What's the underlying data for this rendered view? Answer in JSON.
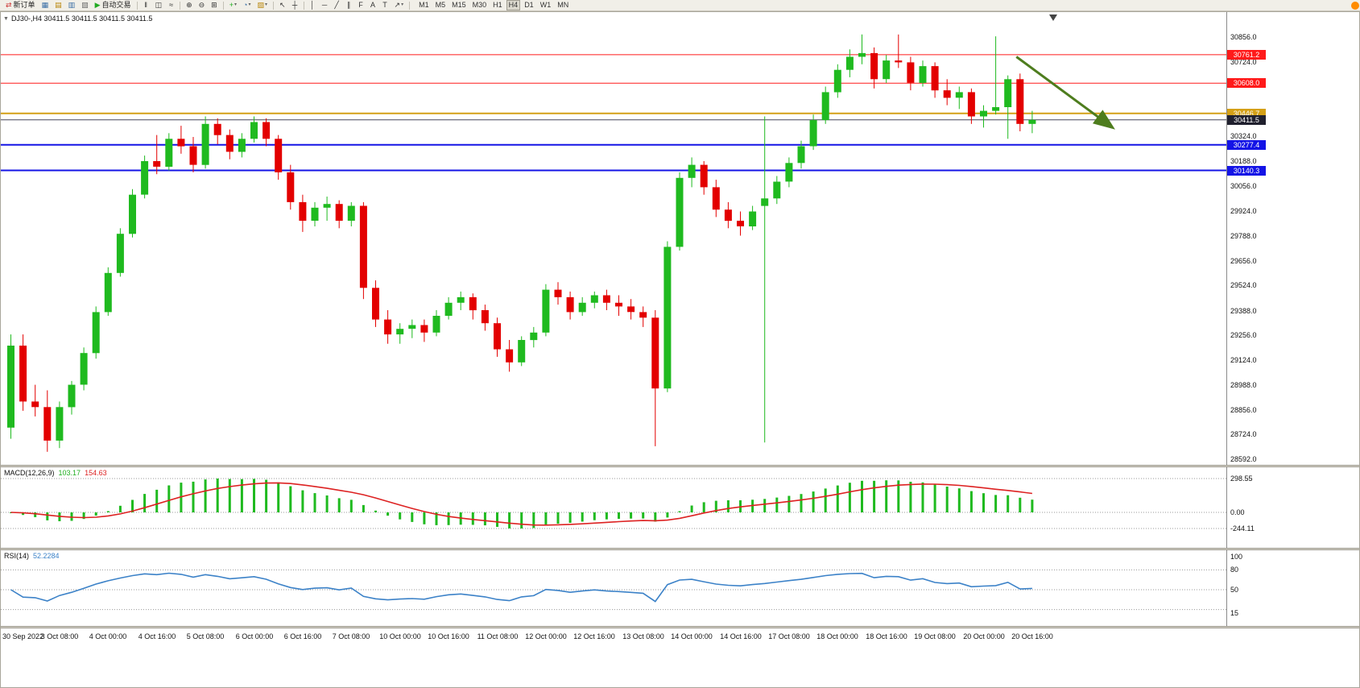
{
  "app": {
    "bull_color": "#1fba1f",
    "bear_color": "#e30000"
  },
  "toolbar": {
    "groups": [
      {
        "items": [
          {
            "name": "new-order-button",
            "glyph": "⇄",
            "glyph_color": "#cc3333",
            "label": "新订单"
          },
          {
            "name": "chart-window-button",
            "glyph": "▦",
            "glyph_color": "#3a6ea5"
          },
          {
            "name": "profiles-button",
            "glyph": "▤",
            "glyph_color": "#b8860b"
          },
          {
            "name": "market-watch-button",
            "glyph": "▥",
            "glyph_color": "#3a6ea5"
          },
          {
            "name": "data-window-button",
            "glyph": "▧",
            "glyph_color": "#6a6a6a"
          },
          {
            "name": "autotrading-button",
            "glyph": "▶",
            "glyph_color": "#22aa22",
            "label": "自动交易"
          }
        ]
      },
      {
        "items": [
          {
            "name": "bar-chart-button",
            "glyph": "‖",
            "glyph_color": "#333333"
          },
          {
            "name": "candlestick-button",
            "glyph": "◫",
            "glyph_color": "#333333"
          },
          {
            "name": "line-chart-button",
            "glyph": "≈",
            "glyph_color": "#333333"
          }
        ]
      },
      {
        "items": [
          {
            "name": "zoom-in-button",
            "glyph": "⊕",
            "glyph_color": "#333333"
          },
          {
            "name": "zoom-out-button",
            "glyph": "⊖",
            "glyph_color": "#333333"
          },
          {
            "name": "tile-windows-button",
            "glyph": "⊞",
            "glyph_color": "#333333"
          }
        ]
      },
      {
        "items": [
          {
            "name": "indicators-button",
            "glyph": "+",
            "glyph_color": "#1fae1f",
            "dropdown": true
          },
          {
            "name": "periods-button",
            "glyph": "◔",
            "glyph_color": "#3a6ea5",
            "dropdown": true
          },
          {
            "name": "templates-button",
            "glyph": "▨",
            "glyph_color": "#b8860b",
            "dropdown": true
          }
        ]
      },
      {
        "items": [
          {
            "name": "cursor-button",
            "glyph": "↖",
            "glyph_color": "#333333"
          },
          {
            "name": "crosshair-button",
            "glyph": "┼",
            "glyph_color": "#333333"
          }
        ]
      },
      {
        "items": [
          {
            "name": "vertical-line-button",
            "glyph": "│",
            "glyph_color": "#333333"
          },
          {
            "name": "horizontal-line-button",
            "glyph": "─",
            "glyph_color": "#333333"
          },
          {
            "name": "trendline-button",
            "glyph": "╱",
            "glyph_color": "#333333"
          },
          {
            "name": "channel-button",
            "glyph": "∥",
            "glyph_color": "#333333"
          },
          {
            "name": "fibonacci-button",
            "glyph": "F",
            "glyph_color": "#333333"
          },
          {
            "name": "text-button",
            "glyph": "A",
            "glyph_color": "#333333"
          },
          {
            "name": "label-button",
            "glyph": "T",
            "glyph_color": "#333333"
          },
          {
            "name": "arrows-button",
            "glyph": "↗",
            "glyph_color": "#333333",
            "dropdown": true
          }
        ]
      }
    ],
    "timeframes": [
      {
        "label": "M1"
      },
      {
        "label": "M5"
      },
      {
        "label": "M15"
      },
      {
        "label": "M30"
      },
      {
        "label": "H1"
      },
      {
        "label": "H4",
        "active": true
      },
      {
        "label": "D1"
      },
      {
        "label": "W1"
      },
      {
        "label": "MN"
      }
    ],
    "help_icon_color": "#ff8c00"
  },
  "chart": {
    "title": "DJ30-,H4  30411.5 30411.5 30411.5 30411.5",
    "scale": {
      "p_max": 30990,
      "p_min": 28560
    },
    "price_axis_ticks": [
      30856,
      30724,
      30324,
      30188,
      30056,
      29924,
      29788,
      29656,
      29524,
      29388,
      29256,
      29124,
      28988,
      28856,
      28724,
      28592
    ],
    "levels": [
      {
        "price": 30761.2,
        "label": "30761.2",
        "color": "#ff1a1a",
        "tag_bg": "#ff1a1a",
        "tag_fg": "#ffffff",
        "lw": 1
      },
      {
        "price": 30608.0,
        "label": "30608.0",
        "color": "#ff1a1a",
        "tag_bg": "#ff1a1a",
        "tag_fg": "#ffffff",
        "lw": 1
      },
      {
        "price": 30446.7,
        "label": "30446.7",
        "color": "#d4a017",
        "tag_bg": "#d4a017",
        "tag_fg": "#ffffff",
        "lw": 2
      },
      {
        "price": 30277.4,
        "label": "30277.4",
        "color": "#1414e6",
        "tag_bg": "#1414e6",
        "tag_fg": "#ffffff",
        "lw": 2
      },
      {
        "price": 30140.3,
        "label": "30140.3",
        "color": "#1414e6",
        "tag_bg": "#1414e6",
        "tag_fg": "#ffffff",
        "lw": 2
      }
    ],
    "current_price": {
      "value": 30411.5,
      "label": "30411.5",
      "line_color": "#46465a",
      "tag_bg": "#20202e",
      "tag_fg": "#ffffff"
    },
    "arrow": {
      "bar1": 83.0,
      "price1": 30750,
      "bar2": 90.8,
      "price2": 30375,
      "color": "#4e7d1e"
    },
    "candles": [
      [
        28760,
        29260,
        28700,
        29200
      ],
      [
        29200,
        29260,
        28850,
        28900
      ],
      [
        28900,
        28990,
        28820,
        28870
      ],
      [
        28870,
        28960,
        28630,
        28690
      ],
      [
        28690,
        28900,
        28650,
        28870
      ],
      [
        28870,
        29010,
        28830,
        28990
      ],
      [
        28990,
        29190,
        28960,
        29160
      ],
      [
        29160,
        29410,
        29130,
        29380
      ],
      [
        29380,
        29620,
        29360,
        29590
      ],
      [
        29590,
        29830,
        29570,
        29800
      ],
      [
        29800,
        30040,
        29780,
        30010
      ],
      [
        30010,
        30220,
        29990,
        30190
      ],
      [
        30190,
        30330,
        30120,
        30160
      ],
      [
        30160,
        30340,
        30140,
        30310
      ],
      [
        30310,
        30380,
        30230,
        30270
      ],
      [
        30270,
        30320,
        30130,
        30170
      ],
      [
        30170,
        30430,
        30150,
        30390
      ],
      [
        30390,
        30420,
        30280,
        30330
      ],
      [
        30330,
        30360,
        30200,
        30240
      ],
      [
        30240,
        30340,
        30210,
        30310
      ],
      [
        30310,
        30430,
        30290,
        30400
      ],
      [
        30400,
        30420,
        30270,
        30310
      ],
      [
        30310,
        30330,
        30090,
        30130
      ],
      [
        30130,
        30170,
        29930,
        29970
      ],
      [
        29970,
        30010,
        29810,
        29870
      ],
      [
        29870,
        29970,
        29840,
        29940
      ],
      [
        29940,
        30000,
        29870,
        29960
      ],
      [
        29960,
        29980,
        29830,
        29870
      ],
      [
        29870,
        29970,
        29840,
        29950
      ],
      [
        29950,
        29970,
        29450,
        29510
      ],
      [
        29510,
        29550,
        29300,
        29340
      ],
      [
        29340,
        29390,
        29210,
        29260
      ],
      [
        29260,
        29320,
        29210,
        29290
      ],
      [
        29290,
        29340,
        29240,
        29310
      ],
      [
        29310,
        29340,
        29220,
        29270
      ],
      [
        29270,
        29390,
        29250,
        29360
      ],
      [
        29360,
        29460,
        29340,
        29430
      ],
      [
        29430,
        29490,
        29390,
        29460
      ],
      [
        29460,
        29480,
        29340,
        29390
      ],
      [
        29390,
        29420,
        29280,
        29320
      ],
      [
        29320,
        29350,
        29140,
        29180
      ],
      [
        29180,
        29230,
        29060,
        29110
      ],
      [
        29110,
        29250,
        29090,
        29230
      ],
      [
        29230,
        29300,
        29190,
        29270
      ],
      [
        29270,
        29530,
        29250,
        29500
      ],
      [
        29500,
        29540,
        29420,
        29460
      ],
      [
        29460,
        29490,
        29340,
        29380
      ],
      [
        29380,
        29460,
        29360,
        29430
      ],
      [
        29430,
        29490,
        29400,
        29470
      ],
      [
        29470,
        29500,
        29390,
        29430
      ],
      [
        29430,
        29470,
        29360,
        29410
      ],
      [
        29410,
        29450,
        29340,
        29380
      ],
      [
        29380,
        29410,
        29300,
        29350
      ],
      [
        29350,
        29390,
        28660,
        28970
      ],
      [
        28970,
        29760,
        28950,
        29730
      ],
      [
        29730,
        30130,
        29710,
        30100
      ],
      [
        30100,
        30210,
        30050,
        30170
      ],
      [
        30170,
        30190,
        30010,
        30050
      ],
      [
        30050,
        30090,
        29890,
        29930
      ],
      [
        29930,
        29970,
        29830,
        29870
      ],
      [
        29870,
        29920,
        29790,
        29840
      ],
      [
        29840,
        29950,
        29820,
        29920
      ],
      [
        29950,
        30430,
        28680,
        29990
      ],
      [
        29990,
        30110,
        29960,
        30080
      ],
      [
        30080,
        30210,
        30050,
        30180
      ],
      [
        30180,
        30300,
        30150,
        30270
      ],
      [
        30270,
        30440,
        30250,
        30410
      ],
      [
        30410,
        30590,
        30390,
        30560
      ],
      [
        30560,
        30710,
        30530,
        30680
      ],
      [
        30680,
        30790,
        30640,
        30750
      ],
      [
        30750,
        30870,
        30710,
        30770
      ],
      [
        30770,
        30800,
        30580,
        30630
      ],
      [
        30630,
        30760,
        30610,
        30730
      ],
      [
        30730,
        30870,
        30690,
        30720
      ],
      [
        30720,
        30750,
        30570,
        30610
      ],
      [
        30610,
        30730,
        30590,
        30700
      ],
      [
        30700,
        30720,
        30530,
        30570
      ],
      [
        30570,
        30630,
        30490,
        30530
      ],
      [
        30530,
        30590,
        30470,
        30560
      ],
      [
        30560,
        30580,
        30390,
        30430
      ],
      [
        30430,
        30490,
        30370,
        30460
      ],
      [
        30460,
        30860,
        30440,
        30480
      ],
      [
        30480,
        30650,
        30310,
        30630
      ],
      [
        30630,
        30660,
        30350,
        30390
      ],
      [
        30390,
        30460,
        30340,
        30411.5
      ]
    ],
    "time_labels": [
      {
        "text": "30 Sep 2022",
        "bar": 0
      },
      {
        "text": "3 Oct 08:00",
        "bar": 4
      },
      {
        "text": "4 Oct 00:00",
        "bar": 8
      },
      {
        "text": "4 Oct 16:00",
        "bar": 12
      },
      {
        "text": "5 Oct 08:00",
        "bar": 16
      },
      {
        "text": "6 Oct 00:00",
        "bar": 20
      },
      {
        "text": "6 Oct 16:00",
        "bar": 24
      },
      {
        "text": "7 Oct 08:00",
        "bar": 28
      },
      {
        "text": "10 Oct 00:00",
        "bar": 32
      },
      {
        "text": "10 Oct 16:00",
        "bar": 36
      },
      {
        "text": "11 Oct 08:00",
        "bar": 40
      },
      {
        "text": "12 Oct 00:00",
        "bar": 44
      },
      {
        "text": "12 Oct 16:00",
        "bar": 48
      },
      {
        "text": "13 Oct 08:00",
        "bar": 52
      },
      {
        "text": "14 Oct 00:00",
        "bar": 56
      },
      {
        "text": "14 Oct 16:00",
        "bar": 60
      },
      {
        "text": "17 Oct 08:00",
        "bar": 64
      },
      {
        "text": "18 Oct 00:00",
        "bar": 68
      },
      {
        "text": "18 Oct 16:00",
        "bar": 72
      },
      {
        "text": "19 Oct 08:00",
        "bar": 76
      },
      {
        "text": "20 Oct 00:00",
        "bar": 80
      },
      {
        "text": "20 Oct 16:00",
        "bar": 84
      }
    ]
  },
  "macd": {
    "name": "MACD(12,26,9)",
    "value_main": "103.17",
    "value_signal": "154.63",
    "axis_labels": [
      "298.55",
      "0.00",
      "-244.11"
    ],
    "hist_color": "#1fba1f",
    "signal_color": "#dd2222"
  },
  "rsi": {
    "name": "RSI(14)",
    "value": "52.2284",
    "axis_labels": [
      "100",
      "80",
      "50",
      "15"
    ],
    "levels": [
      80,
      50,
      20
    ],
    "line_color": "#3c82c8"
  }
}
